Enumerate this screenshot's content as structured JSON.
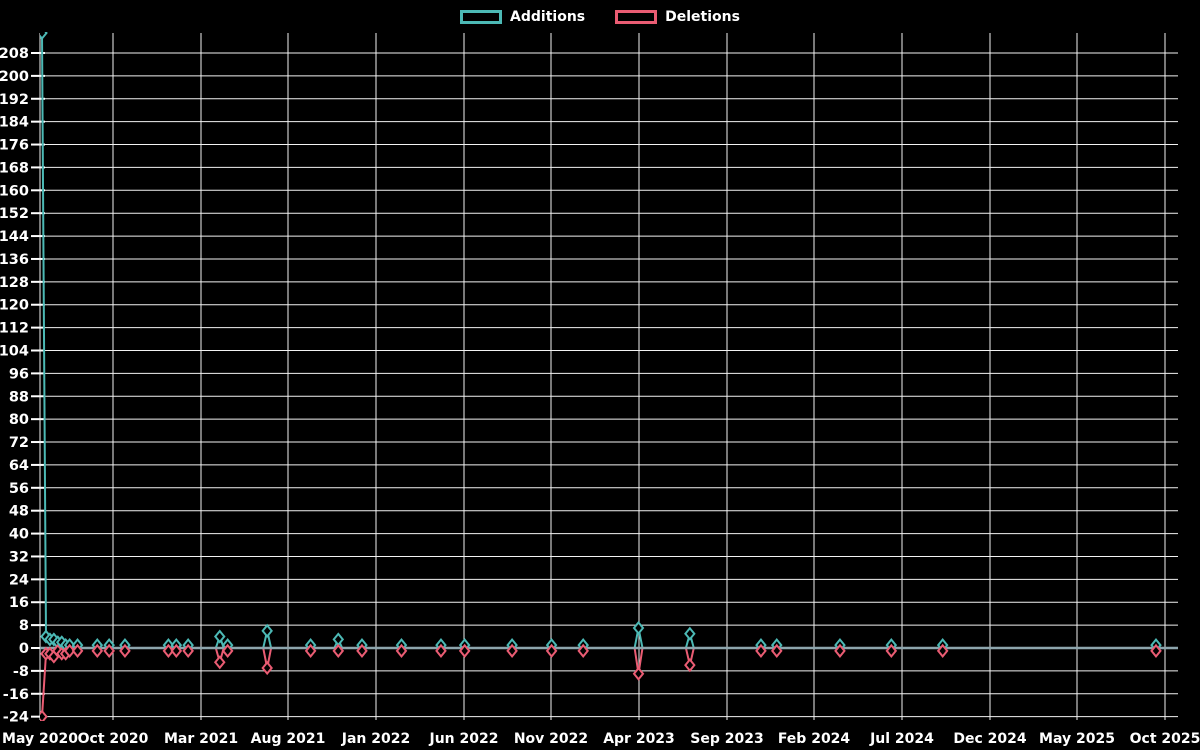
{
  "legend": {
    "items": [
      {
        "label": "Additions",
        "color": "#4cb9b5"
      },
      {
        "label": "Deletions",
        "color": "#ea5c73"
      }
    ]
  },
  "colors": {
    "background": "#000000",
    "grid": "#f2f2f2",
    "axis_text": "#ffffff",
    "zero_line": "#8da5ad",
    "additions": "#4cb9b5",
    "deletions": "#ea5c73"
  },
  "chart_data": {
    "type": "line",
    "title": "",
    "xlabel": "",
    "ylabel": "",
    "grid": "on",
    "legend_position": "top-center",
    "marker": "open-diamond",
    "x_axis": {
      "unit": "week",
      "tick_labels": [
        "May 2020",
        "Oct 2020",
        "Mar 2021",
        "Aug 2021",
        "Jan 2022",
        "Jun 2022",
        "Nov 2022",
        "Apr 2023",
        "Sep 2023",
        "Feb 2024",
        "Jul 2024",
        "Dec 2024",
        "May 2025",
        "Oct 2025"
      ]
    },
    "y_axis": {
      "min": -24,
      "max": 208,
      "step": 8,
      "tick_values": [
        208,
        200,
        192,
        184,
        176,
        168,
        160,
        152,
        144,
        136,
        128,
        120,
        112,
        104,
        96,
        88,
        80,
        72,
        64,
        56,
        48,
        40,
        32,
        24,
        16,
        8,
        0,
        -8,
        -16,
        -24
      ]
    },
    "ylim": [
      -26,
      215
    ],
    "series": [
      {
        "name": "Additions",
        "color": "#4cb9b5"
      },
      {
        "name": "Deletions",
        "color": "#ea5c73"
      }
    ],
    "total_weeks": 283,
    "points_note": "weeks not listed have additions 0 and deletions 0",
    "points": [
      {
        "week": 0,
        "additions": 215,
        "deletions": -24
      },
      {
        "week": 1,
        "additions": 4,
        "deletions": -2
      },
      {
        "week": 2,
        "additions": 3,
        "deletions": -2
      },
      {
        "week": 3,
        "additions": 3,
        "deletions": -3
      },
      {
        "week": 4,
        "additions": 2,
        "deletions": -1
      },
      {
        "week": 5,
        "additions": 2,
        "deletions": -2
      },
      {
        "week": 6,
        "additions": 1,
        "deletions": -2
      },
      {
        "week": 7,
        "additions": 1,
        "deletions": -1
      },
      {
        "week": 9,
        "additions": 1,
        "deletions": -1
      },
      {
        "week": 14,
        "additions": 1,
        "deletions": -1
      },
      {
        "week": 17,
        "additions": 1,
        "deletions": -1
      },
      {
        "week": 21,
        "additions": 1,
        "deletions": -1
      },
      {
        "week": 32,
        "additions": 1,
        "deletions": -1
      },
      {
        "week": 34,
        "additions": 1,
        "deletions": -1
      },
      {
        "week": 37,
        "additions": 1,
        "deletions": -1
      },
      {
        "week": 45,
        "additions": 4,
        "deletions": -5
      },
      {
        "week": 47,
        "additions": 1,
        "deletions": -1
      },
      {
        "week": 57,
        "additions": 6,
        "deletions": -7
      },
      {
        "week": 68,
        "additions": 1,
        "deletions": -1
      },
      {
        "week": 75,
        "additions": 3,
        "deletions": -1
      },
      {
        "week": 81,
        "additions": 1,
        "deletions": -1
      },
      {
        "week": 91,
        "additions": 1,
        "deletions": -1
      },
      {
        "week": 101,
        "additions": 1,
        "deletions": -1
      },
      {
        "week": 107,
        "additions": 1,
        "deletions": -1
      },
      {
        "week": 119,
        "additions": 1,
        "deletions": -1
      },
      {
        "week": 129,
        "additions": 1,
        "deletions": -1
      },
      {
        "week": 137,
        "additions": 1,
        "deletions": -1
      },
      {
        "week": 151,
        "additions": 7,
        "deletions": -9
      },
      {
        "week": 164,
        "additions": 5,
        "deletions": -6
      },
      {
        "week": 182,
        "additions": 1,
        "deletions": -1
      },
      {
        "week": 186,
        "additions": 1,
        "deletions": -1
      },
      {
        "week": 202,
        "additions": 1,
        "deletions": -1
      },
      {
        "week": 215,
        "additions": 1,
        "deletions": -1
      },
      {
        "week": 228,
        "additions": 1,
        "deletions": -1
      },
      {
        "week": 282,
        "additions": 1,
        "deletions": -1
      }
    ]
  }
}
